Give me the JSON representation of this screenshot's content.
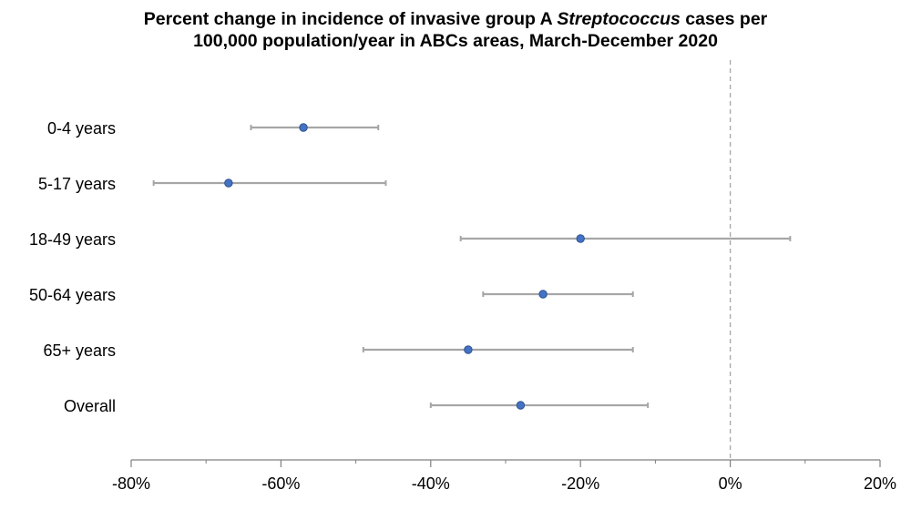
{
  "chart_data": {
    "type": "scatter",
    "title_line1_prefix": "Percent change in incidence of invasive group A ",
    "title_line1_italic": "Streptococcus",
    "title_line1_suffix": " cases per",
    "title_line2": "100,000 population/year in ABCs areas, March-December 2020",
    "categories": [
      "0-4 years",
      "5-17 years",
      "18-49 years",
      "50-64 years",
      "65+ years",
      "Overall"
    ],
    "values": [
      -57,
      -67,
      -20,
      -25,
      -35,
      -28
    ],
    "ci_lower": [
      -64,
      -77,
      -36,
      -33,
      -49,
      -40
    ],
    "ci_upper": [
      -47,
      -46,
      8,
      -13,
      -13,
      -11
    ],
    "xlim": [
      -80,
      20
    ],
    "x_ticks": [
      -80,
      -60,
      -40,
      -20,
      0,
      20
    ],
    "x_tick_labels": [
      "-80%",
      "-60%",
      "-40%",
      "-20%",
      "0%",
      "20%"
    ],
    "reference_line_x": 0,
    "xlabel": "",
    "ylabel": "",
    "grid": false,
    "colors": {
      "point_fill": "#4472C4",
      "point_stroke": "#2F528F",
      "error_bar": "#A6A6A6",
      "reference_line": "#A6A6A6",
      "axis": "#808080"
    }
  }
}
